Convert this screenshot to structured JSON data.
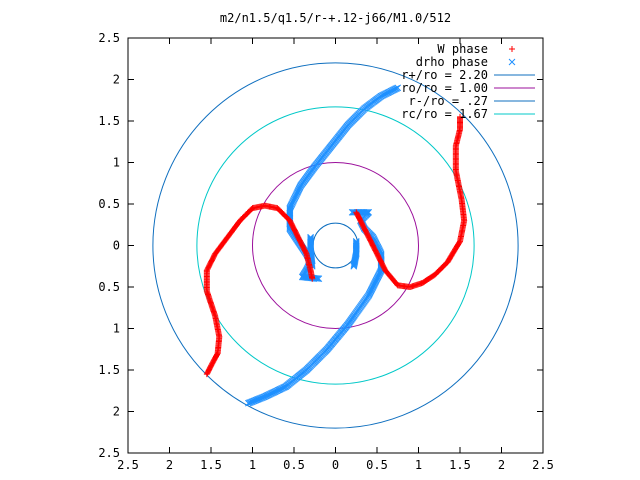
{
  "chart_data": {
    "type": "scatter",
    "title": "m2/n1.5/q1.5/r-+.12-j66/M1.0/512",
    "xlim": [
      -2.5,
      2.5
    ],
    "ylim": [
      -2.5,
      2.5
    ],
    "xticks": [
      -2.5,
      -2,
      -1.5,
      -1,
      -0.5,
      0,
      0.5,
      1,
      1.5,
      2,
      2.5
    ],
    "yticks": [
      -2.5,
      -2,
      -1.5,
      -1,
      -0.5,
      0,
      0.5,
      1,
      1.5,
      2,
      2.5
    ],
    "xtick_labels": [
      "2.5",
      "2",
      "1.5",
      "1",
      "0.5",
      "0",
      "0.5",
      "1",
      "1.5",
      "2",
      "2.5"
    ],
    "ytick_labels": [
      "2.5",
      "2",
      "1.5",
      "1",
      "0.5",
      "0",
      "0.5",
      "1",
      "1.5",
      "2",
      "2.5"
    ],
    "legend_position": "top-right",
    "grid": false,
    "series": [
      {
        "name": "W phase",
        "kind": "points",
        "marker": "plus",
        "color": "#ff0000",
        "arms": [
          [
            [
              -1.55,
              -1.55
            ],
            [
              -1.5,
              -1.45
            ],
            [
              -1.42,
              -1.3
            ],
            [
              -1.4,
              -1.1
            ],
            [
              -1.45,
              -0.85
            ],
            [
              -1.55,
              -0.55
            ],
            [
              -1.55,
              -0.3
            ],
            [
              -1.45,
              -0.1
            ],
            [
              -1.3,
              0.1
            ],
            [
              -1.15,
              0.3
            ],
            [
              -1.0,
              0.45
            ],
            [
              -0.85,
              0.48
            ],
            [
              -0.7,
              0.45
            ],
            [
              -0.55,
              0.3
            ],
            [
              -0.45,
              0.1
            ],
            [
              -0.35,
              -0.1
            ],
            [
              -0.3,
              -0.3
            ],
            [
              -0.28,
              -0.4
            ]
          ],
          [
            [
              1.5,
              1.55
            ],
            [
              1.5,
              1.4
            ],
            [
              1.45,
              1.2
            ],
            [
              1.45,
              0.9
            ],
            [
              1.52,
              0.55
            ],
            [
              1.55,
              0.3
            ],
            [
              1.5,
              0.05
            ],
            [
              1.35,
              -0.2
            ],
            [
              1.2,
              -0.35
            ],
            [
              1.05,
              -0.45
            ],
            [
              0.9,
              -0.5
            ],
            [
              0.75,
              -0.48
            ],
            [
              0.6,
              -0.3
            ],
            [
              0.5,
              -0.1
            ],
            [
              0.4,
              0.1
            ],
            [
              0.3,
              0.3
            ],
            [
              0.25,
              0.4
            ]
          ]
        ]
      },
      {
        "name": "drho phase",
        "kind": "points",
        "marker": "x",
        "color": "#1e90ff",
        "arms": [
          [
            [
              0.75,
              1.9
            ],
            [
              0.55,
              1.8
            ],
            [
              0.35,
              1.65
            ],
            [
              0.15,
              1.45
            ],
            [
              -0.05,
              1.2
            ],
            [
              -0.25,
              0.95
            ],
            [
              -0.42,
              0.72
            ],
            [
              -0.55,
              0.45
            ],
            [
              -0.55,
              0.2
            ],
            [
              -0.45,
              0.05
            ],
            [
              -0.35,
              -0.1
            ],
            [
              -0.3,
              -0.2
            ],
            [
              -0.35,
              -0.3
            ],
            [
              -0.4,
              -0.38
            ],
            [
              -0.2,
              -0.4
            ]
          ],
          [
            [
              -1.05,
              -1.9
            ],
            [
              -0.85,
              -1.82
            ],
            [
              -0.6,
              -1.7
            ],
            [
              -0.35,
              -1.5
            ],
            [
              -0.1,
              -1.25
            ],
            [
              0.15,
              -0.95
            ],
            [
              0.4,
              -0.6
            ],
            [
              0.55,
              -0.3
            ],
            [
              0.55,
              -0.1
            ],
            [
              0.45,
              0.1
            ],
            [
              0.35,
              0.2
            ],
            [
              0.3,
              0.3
            ],
            [
              0.35,
              0.35
            ],
            [
              0.4,
              0.4
            ],
            [
              0.2,
              0.4
            ]
          ],
          [
            [
              -0.3,
              0.1
            ],
            [
              -0.3,
              -0.05
            ],
            [
              -0.28,
              -0.25
            ]
          ],
          [
            [
              0.25,
              0.05
            ],
            [
              0.25,
              -0.1
            ],
            [
              0.22,
              -0.25
            ]
          ]
        ]
      },
      {
        "name": "r+/ro = 2.20",
        "kind": "circle",
        "radius": 2.2,
        "color": "#0f6fbf"
      },
      {
        "name": "ro/ro = 1.00",
        "kind": "circle",
        "radius": 1.0,
        "color": "#9b0f9b"
      },
      {
        "name": "r-/ro = .27",
        "kind": "circle",
        "radius": 0.27,
        "color": "#0f6fbf"
      },
      {
        "name": "rc/ro = 1.67",
        "kind": "circle",
        "radius": 1.67,
        "color": "#00c8c8"
      }
    ]
  }
}
